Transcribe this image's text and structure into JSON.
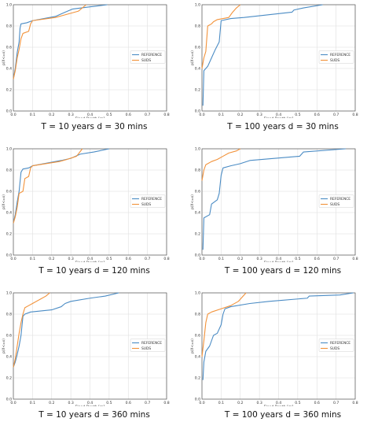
{
  "colors": {
    "reference": "#4a8bc4",
    "suds": "#f2923a",
    "grid": "#dedede",
    "axis": "#555555"
  },
  "chart_data": [
    {
      "type": "line",
      "caption": "T = 10 years d = 30 mins",
      "xlabel": "Flood Depth [m]",
      "ylabel": "p(X<=x)",
      "xlim": [
        0,
        0.8
      ],
      "ylim": [
        0,
        1.0
      ],
      "xticks": [
        "0.0",
        "0.1",
        "0.2",
        "0.3",
        "0.4",
        "0.5",
        "0.6",
        "0.7",
        "0.8"
      ],
      "yticks": [
        "0.0",
        "0.2",
        "0.4",
        "0.6",
        "0.8",
        "1.0"
      ],
      "grid": true,
      "legend": "center-right",
      "series": [
        {
          "name": "REFERENCE",
          "points": [
            [
              0,
              0.3
            ],
            [
              0.01,
              0.4
            ],
            [
              0.02,
              0.55
            ],
            [
              0.03,
              0.65
            ],
            [
              0.035,
              0.78
            ],
            [
              0.04,
              0.82
            ],
            [
              0.07,
              0.83
            ],
            [
              0.1,
              0.85
            ],
            [
              0.22,
              0.89
            ],
            [
              0.27,
              0.93
            ],
            [
              0.31,
              0.96
            ],
            [
              0.4,
              0.98
            ],
            [
              0.49,
              1.0
            ]
          ]
        },
        {
          "name": "SUDS",
          "points": [
            [
              0,
              0.3
            ],
            [
              0.01,
              0.38
            ],
            [
              0.02,
              0.5
            ],
            [
              0.03,
              0.58
            ],
            [
              0.04,
              0.68
            ],
            [
              0.05,
              0.73
            ],
            [
              0.08,
              0.75
            ],
            [
              0.09,
              0.82
            ],
            [
              0.1,
              0.85
            ],
            [
              0.22,
              0.88
            ],
            [
              0.26,
              0.9
            ],
            [
              0.34,
              0.94
            ],
            [
              0.38,
              1.0
            ]
          ]
        }
      ]
    },
    {
      "type": "line",
      "caption": "T = 100 years d = 30 mins",
      "xlabel": "Flood Depth [m]",
      "ylabel": "p(X<=x)",
      "xlim": [
        0,
        0.8
      ],
      "ylim": [
        0,
        1.0
      ],
      "xticks": [
        "0.0",
        "0.1",
        "0.2",
        "0.3",
        "0.4",
        "0.5",
        "0.6",
        "0.7",
        "0.8"
      ],
      "yticks": [
        "0.0",
        "0.2",
        "0.4",
        "0.6",
        "0.8",
        "1.0"
      ],
      "grid": true,
      "legend": "center-right",
      "series": [
        {
          "name": "REFERENCE",
          "points": [
            [
              0.005,
              0.05
            ],
            [
              0.01,
              0.38
            ],
            [
              0.03,
              0.42
            ],
            [
              0.05,
              0.5
            ],
            [
              0.07,
              0.58
            ],
            [
              0.09,
              0.65
            ],
            [
              0.1,
              0.85
            ],
            [
              0.15,
              0.87
            ],
            [
              0.22,
              0.88
            ],
            [
              0.47,
              0.93
            ],
            [
              0.48,
              0.95
            ],
            [
              0.53,
              0.97
            ],
            [
              0.63,
              1.0
            ]
          ]
        },
        {
          "name": "SUDS",
          "points": [
            [
              0,
              0.4
            ],
            [
              0.01,
              0.5
            ],
            [
              0.02,
              0.56
            ],
            [
              0.03,
              0.8
            ],
            [
              0.05,
              0.82
            ],
            [
              0.06,
              0.84
            ],
            [
              0.08,
              0.86
            ],
            [
              0.11,
              0.87
            ],
            [
              0.14,
              0.88
            ],
            [
              0.16,
              0.93
            ],
            [
              0.18,
              0.97
            ],
            [
              0.2,
              1.0
            ]
          ]
        }
      ]
    },
    {
      "type": "line",
      "caption": "T = 10 years d = 120 mins",
      "xlabel": "Flood Depth [m]",
      "ylabel": "p(X<=x)",
      "xlim": [
        0,
        0.8
      ],
      "ylim": [
        0,
        1.0
      ],
      "xticks": [
        "0.0",
        "0.1",
        "0.2",
        "0.3",
        "0.4",
        "0.5",
        "0.6",
        "0.7",
        "0.8"
      ],
      "yticks": [
        "0.0",
        "0.2",
        "0.4",
        "0.6",
        "0.8",
        "1.0"
      ],
      "grid": true,
      "legend": "center-right",
      "series": [
        {
          "name": "REFERENCE",
          "points": [
            [
              0,
              0.3
            ],
            [
              0.01,
              0.38
            ],
            [
              0.02,
              0.5
            ],
            [
              0.03,
              0.6
            ],
            [
              0.04,
              0.78
            ],
            [
              0.05,
              0.81
            ],
            [
              0.08,
              0.82
            ],
            [
              0.1,
              0.84
            ],
            [
              0.25,
              0.89
            ],
            [
              0.3,
              0.91
            ],
            [
              0.35,
              0.95
            ],
            [
              0.42,
              0.97
            ],
            [
              0.5,
              1.0
            ]
          ]
        },
        {
          "name": "SUDS",
          "points": [
            [
              0,
              0.3
            ],
            [
              0.01,
              0.36
            ],
            [
              0.02,
              0.45
            ],
            [
              0.03,
              0.58
            ],
            [
              0.05,
              0.6
            ],
            [
              0.06,
              0.72
            ],
            [
              0.08,
              0.74
            ],
            [
              0.09,
              0.82
            ],
            [
              0.1,
              0.84
            ],
            [
              0.24,
              0.88
            ],
            [
              0.28,
              0.9
            ],
            [
              0.33,
              0.93
            ],
            [
              0.36,
              1.0
            ]
          ]
        }
      ]
    },
    {
      "type": "line",
      "caption": "T = 100 years d = 120 mins",
      "xlabel": "Flood Depth [m]",
      "ylabel": "p(X<=x)",
      "xlim": [
        0,
        0.8
      ],
      "ylim": [
        0,
        1.0
      ],
      "xticks": [
        "0.0",
        "0.1",
        "0.2",
        "0.3",
        "0.4",
        "0.5",
        "0.6",
        "0.7",
        "0.8"
      ],
      "yticks": [
        "0.0",
        "0.2",
        "0.4",
        "0.6",
        "0.8",
        "1.0"
      ],
      "grid": true,
      "legend": "center-right",
      "series": [
        {
          "name": "REFERENCE",
          "points": [
            [
              0.005,
              0.05
            ],
            [
              0.01,
              0.35
            ],
            [
              0.04,
              0.38
            ],
            [
              0.05,
              0.48
            ],
            [
              0.08,
              0.52
            ],
            [
              0.09,
              0.58
            ],
            [
              0.1,
              0.75
            ],
            [
              0.11,
              0.82
            ],
            [
              0.15,
              0.84
            ],
            [
              0.2,
              0.86
            ],
            [
              0.25,
              0.89
            ],
            [
              0.51,
              0.93
            ],
            [
              0.53,
              0.97
            ],
            [
              0.75,
              1.0
            ]
          ]
        },
        {
          "name": "SUDS",
          "points": [
            [
              0,
              0.7
            ],
            [
              0.01,
              0.8
            ],
            [
              0.02,
              0.85
            ],
            [
              0.05,
              0.88
            ],
            [
              0.08,
              0.9
            ],
            [
              0.11,
              0.93
            ],
            [
              0.14,
              0.96
            ],
            [
              0.18,
              0.98
            ],
            [
              0.2,
              1.0
            ]
          ]
        }
      ]
    },
    {
      "type": "line",
      "caption": "T = 10 years d = 360 mins",
      "xlabel": "Flood Depth [m]",
      "ylabel": "p(X<=x)",
      "xlim": [
        0,
        0.8
      ],
      "ylim": [
        0,
        1.0
      ],
      "xticks": [
        "0.0",
        "0.1",
        "0.2",
        "0.3",
        "0.4",
        "0.5",
        "0.6",
        "0.7",
        "0.8"
      ],
      "yticks": [
        "0.0",
        "0.2",
        "0.4",
        "0.6",
        "0.8",
        "1.0"
      ],
      "grid": true,
      "legend": "center-right",
      "series": [
        {
          "name": "REFERENCE",
          "points": [
            [
              0,
              0.3
            ],
            [
              0.01,
              0.35
            ],
            [
              0.02,
              0.42
            ],
            [
              0.03,
              0.5
            ],
            [
              0.04,
              0.6
            ],
            [
              0.05,
              0.78
            ],
            [
              0.06,
              0.8
            ],
            [
              0.09,
              0.82
            ],
            [
              0.2,
              0.84
            ],
            [
              0.25,
              0.87
            ],
            [
              0.27,
              0.9
            ],
            [
              0.3,
              0.92
            ],
            [
              0.4,
              0.95
            ],
            [
              0.48,
              0.97
            ],
            [
              0.55,
              1.0
            ]
          ]
        },
        {
          "name": "SUDS",
          "points": [
            [
              0,
              0.3
            ],
            [
              0.01,
              0.38
            ],
            [
              0.02,
              0.5
            ],
            [
              0.03,
              0.62
            ],
            [
              0.04,
              0.72
            ],
            [
              0.05,
              0.8
            ],
            [
              0.06,
              0.86
            ],
            [
              0.08,
              0.88
            ],
            [
              0.1,
              0.9
            ],
            [
              0.14,
              0.94
            ],
            [
              0.17,
              0.97
            ],
            [
              0.19,
              1.0
            ]
          ]
        }
      ]
    },
    {
      "type": "line",
      "caption": "T = 100 years d = 360 mins",
      "xlabel": "Flood Depth [m]",
      "ylabel": "p(X<=x)",
      "xlim": [
        0,
        0.8
      ],
      "ylim": [
        0,
        1.0
      ],
      "xticks": [
        "0.0",
        "0.1",
        "0.2",
        "0.3",
        "0.4",
        "0.5",
        "0.6",
        "0.7",
        "0.8"
      ],
      "yticks": [
        "0.0",
        "0.2",
        "0.4",
        "0.6",
        "0.8",
        "1.0"
      ],
      "grid": true,
      "legend": "center-right",
      "series": [
        {
          "name": "REFERENCE",
          "points": [
            [
              0.005,
              0.18
            ],
            [
              0.01,
              0.35
            ],
            [
              0.02,
              0.45
            ],
            [
              0.04,
              0.5
            ],
            [
              0.05,
              0.55
            ],
            [
              0.06,
              0.6
            ],
            [
              0.08,
              0.62
            ],
            [
              0.1,
              0.7
            ],
            [
              0.11,
              0.8
            ],
            [
              0.12,
              0.85
            ],
            [
              0.15,
              0.87
            ],
            [
              0.25,
              0.9
            ],
            [
              0.35,
              0.92
            ],
            [
              0.55,
              0.95
            ],
            [
              0.56,
              0.97
            ],
            [
              0.72,
              0.98
            ],
            [
              0.79,
              1.0
            ]
          ]
        },
        {
          "name": "SUDS",
          "points": [
            [
              0,
              0.4
            ],
            [
              0.01,
              0.55
            ],
            [
              0.02,
              0.72
            ],
            [
              0.03,
              0.8
            ],
            [
              0.05,
              0.82
            ],
            [
              0.1,
              0.85
            ],
            [
              0.15,
              0.88
            ],
            [
              0.19,
              0.92
            ],
            [
              0.21,
              0.96
            ],
            [
              0.23,
              1.0
            ]
          ]
        }
      ]
    }
  ]
}
